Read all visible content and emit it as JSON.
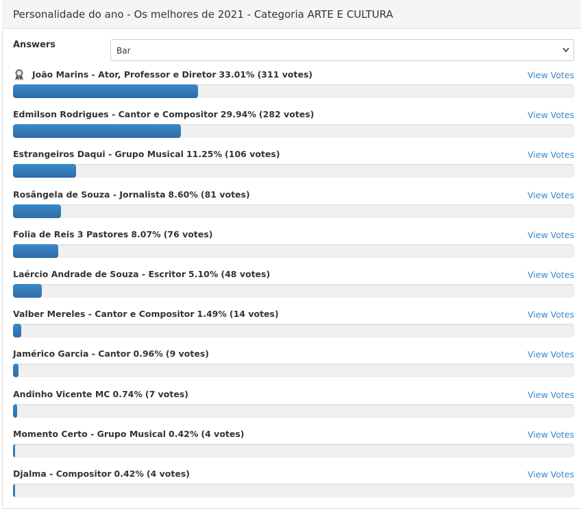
{
  "header": {
    "title": "Personalidade do ano - Os melhores de 2021 - Categoria ARTE E CULTURA"
  },
  "form": {
    "label": "Answers",
    "select_value": "Bar"
  },
  "answers": [
    {
      "name": "João Marins - Ator, Professor e Diretor",
      "percent": 33.01,
      "percent_label": "33.01%",
      "votes": "(311 votes)",
      "link": "View Votes"
    },
    {
      "name": "Edmilson Rodrigues - Cantor e Compositor",
      "percent": 29.94,
      "percent_label": "29.94%",
      "votes": "(282 votes)",
      "link": "View Votes"
    },
    {
      "name": "Estrangeiros Daqui - Grupo Musical",
      "percent": 11.25,
      "percent_label": "11.25%",
      "votes": "(106 votes)",
      "link": "View Votes"
    },
    {
      "name": "Rosângela de Souza - Jornalista",
      "percent": 8.6,
      "percent_label": "8.60%",
      "votes": "(81 votes)",
      "link": "View Votes"
    },
    {
      "name": "Folia de Reis 3 Pastores",
      "percent": 8.07,
      "percent_label": "8.07%",
      "votes": "(76 votes)",
      "link": "View Votes"
    },
    {
      "name": "Laércio Andrade de Souza - Escritor",
      "percent": 5.1,
      "percent_label": "5.10%",
      "votes": "(48 votes)",
      "link": "View Votes"
    },
    {
      "name": "Valber Mereles - Cantor e Compositor",
      "percent": 1.49,
      "percent_label": "1.49%",
      "votes": "(14 votes)",
      "link": "View Votes"
    },
    {
      "name": "Jamérico Garcia - Cantor",
      "percent": 0.96,
      "percent_label": "0.96%",
      "votes": "(9 votes)",
      "link": "View Votes"
    },
    {
      "name": "Andinho Vicente MC",
      "percent": 0.74,
      "percent_label": "0.74%",
      "votes": "(7 votes)",
      "link": "View Votes"
    },
    {
      "name": "Momento Certo - Grupo Musical",
      "percent": 0.42,
      "percent_label": "0.42%",
      "votes": "(4 votes)",
      "link": "View Votes"
    },
    {
      "name": "Djalma - Compositor",
      "percent": 0.42,
      "percent_label": "0.42%",
      "votes": "(4 votes)",
      "link": "View Votes"
    }
  ]
}
